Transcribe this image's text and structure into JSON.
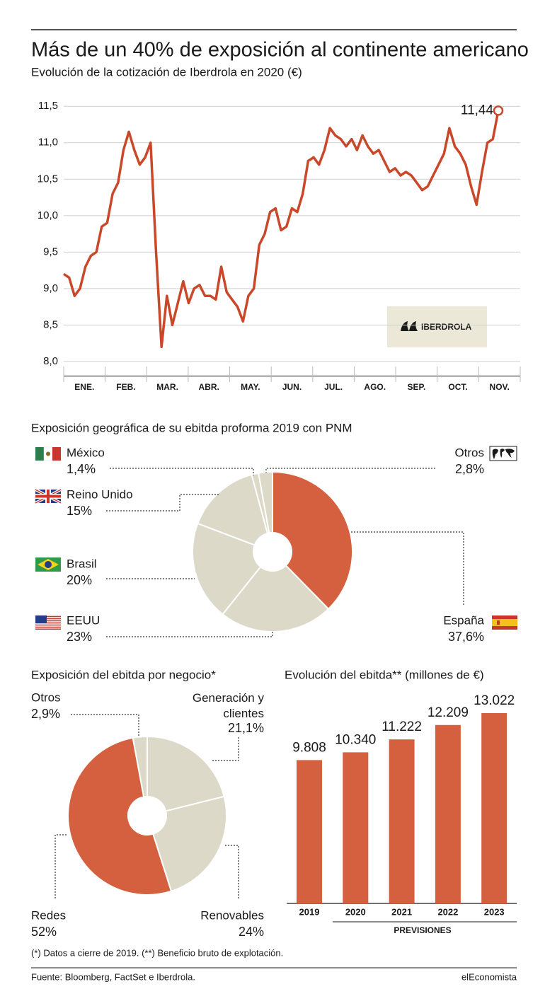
{
  "title": "Más de un 40% de exposición al continente americano",
  "footnote": "(*) Datos a cierre de 2019. (**) Beneficio bruto de explotación.",
  "source": "Fuente: Bloomberg, FactSet e Iberdrola.",
  "brand": "elEconomista",
  "logo": "IBERDROLA",
  "chart_data": [
    {
      "type": "line",
      "title": "Evolución de la cotización de Iberdrola en 2020 (€)",
      "xtick_labels": [
        "ENE.",
        "FEB.",
        "MAR.",
        "ABR.",
        "MAY.",
        "JUN.",
        "JUL.",
        "AGO.",
        "SEP.",
        "OCT.",
        "NOV."
      ],
      "values": [
        9.2,
        9.15,
        8.9,
        9.0,
        9.3,
        9.45,
        9.5,
        9.85,
        9.9,
        10.3,
        10.45,
        10.9,
        11.15,
        10.9,
        10.7,
        10.8,
        11.0,
        9.5,
        8.2,
        8.9,
        8.5,
        8.8,
        9.1,
        8.8,
        9.0,
        9.05,
        8.9,
        8.9,
        8.85,
        9.3,
        8.95,
        8.85,
        8.75,
        8.55,
        8.9,
        9.0,
        9.6,
        9.75,
        10.05,
        10.1,
        9.8,
        9.85,
        10.1,
        10.05,
        10.3,
        10.75,
        10.8,
        10.7,
        10.9,
        11.2,
        11.1,
        11.05,
        10.95,
        11.05,
        10.9,
        11.1,
        10.95,
        10.85,
        10.9,
        10.75,
        10.6,
        10.65,
        10.55,
        10.6,
        10.55,
        10.45,
        10.35,
        10.4,
        10.55,
        10.7,
        10.85,
        11.2,
        10.95,
        10.85,
        10.7,
        10.4,
        10.15,
        10.6,
        11.0,
        11.05,
        11.44
      ],
      "value_labels": [
        null,
        null,
        null,
        null,
        null,
        null,
        null,
        null,
        null,
        null,
        null,
        null,
        null,
        null,
        null,
        null,
        null,
        null,
        null,
        null,
        null,
        null,
        null,
        null,
        null,
        null,
        null,
        null,
        null,
        null,
        null,
        null,
        null,
        null,
        null,
        null,
        null,
        null,
        null,
        null,
        null,
        null,
        null,
        null,
        null,
        null,
        null,
        null,
        null,
        null,
        null,
        null,
        null,
        null,
        null,
        null,
        null,
        null,
        null,
        null,
        null,
        null,
        null,
        null,
        null,
        null,
        null,
        null,
        null,
        null,
        null,
        null,
        null,
        null,
        null,
        null,
        null,
        null,
        null,
        null,
        "11,44"
      ],
      "color": "#c9482a",
      "ylim": [
        7.8,
        11.7
      ],
      "yticks": [
        {
          "value": 8,
          "label": "8,0"
        },
        {
          "value": 8.5,
          "label": "8,5"
        },
        {
          "value": 9,
          "label": "9,0"
        },
        {
          "value": 9.5,
          "label": "9,5"
        },
        {
          "value": 10,
          "label": "10,0"
        },
        {
          "value": 10.5,
          "label": "10,5"
        },
        {
          "value": 11,
          "label": "11,0"
        },
        {
          "value": 11.5,
          "label": "11,5"
        }
      ],
      "grid": true
    },
    {
      "type": "donut",
      "title": "Exposición geográfica de su ebitda proforma 2019 con PNM",
      "categories": [
        "España",
        "EEUU",
        "Brasil",
        "Reino Unido",
        "México",
        "Otros"
      ],
      "values": [
        37.6,
        23,
        20,
        15,
        1.4,
        2.8
      ],
      "value_labels": [
        "37,6%",
        "23%",
        "20%",
        "15%",
        "1,4%",
        "2,8%"
      ],
      "colors": [
        "#d4603f",
        "#dcd9c8",
        "#dcd9c8",
        "#dcd9c8",
        "#dcd9c8",
        "#dcd9c8"
      ]
    },
    {
      "type": "donut",
      "title": "Exposición del ebitda por negocio*",
      "categories": [
        "Generación y clientes",
        "Renovables",
        "Redes",
        "Otros"
      ],
      "values": [
        21.1,
        24,
        52,
        2.9
      ],
      "value_labels": [
        "21,1%",
        "24%",
        "52%",
        "2,9%"
      ],
      "colors": [
        "#dcd9c8",
        "#dcd9c8",
        "#d4603f",
        "#dcd9c8"
      ]
    },
    {
      "type": "bar",
      "title": "Evolución del ebitda** (millones de €)",
      "categories": [
        "2019",
        "2020",
        "2021",
        "2022",
        "2023"
      ],
      "values": [
        9808,
        10340,
        11222,
        12209,
        13022
      ],
      "value_labels": [
        "9.808",
        "10.340",
        "11.222",
        "12.209",
        "13.022"
      ],
      "color": "#d4603f",
      "annotation": "PREVISIONES"
    }
  ]
}
